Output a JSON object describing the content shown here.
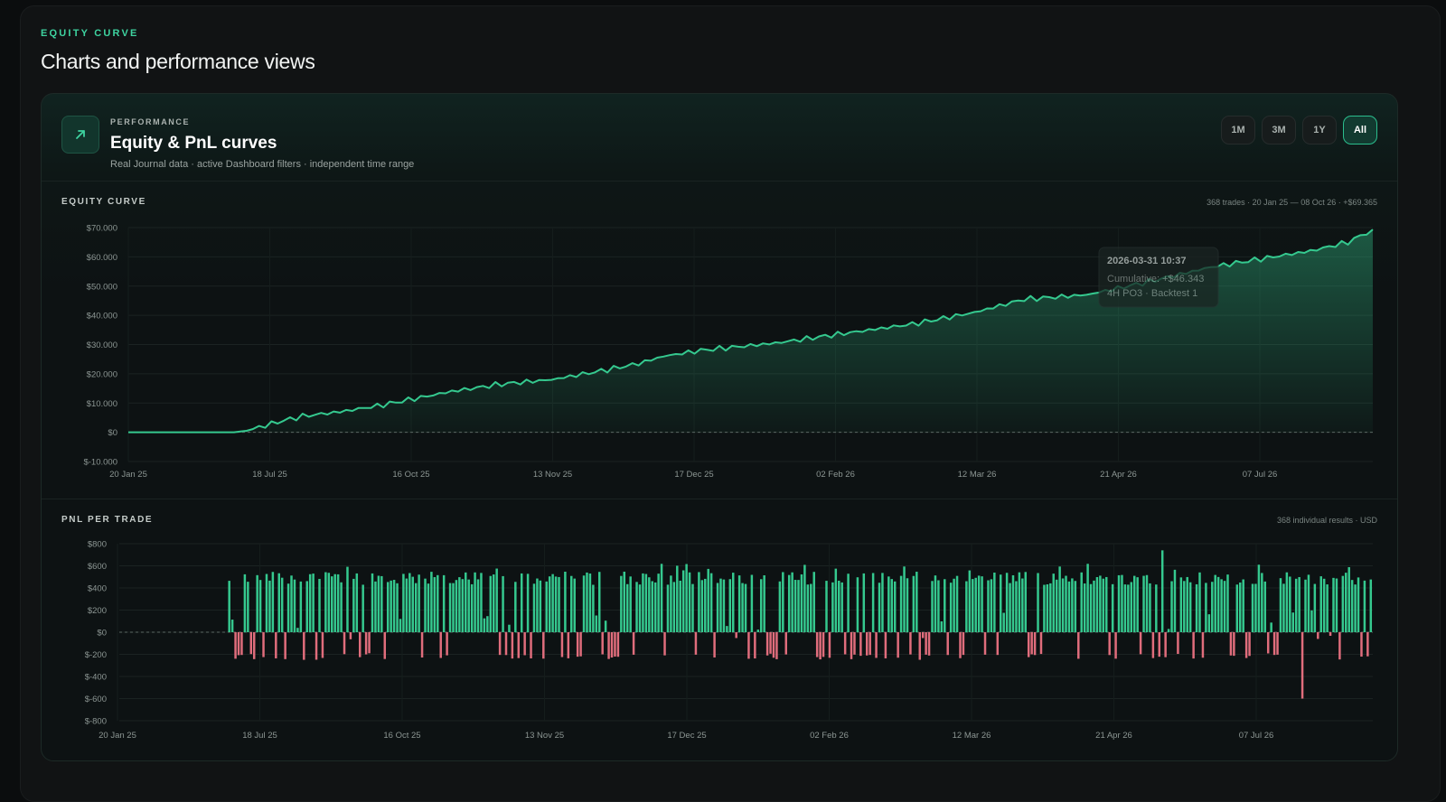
{
  "section": {
    "eyebrow": "EQUITY CURVE",
    "title": "Charts and performance views"
  },
  "card": {
    "icon": "trend-up-icon",
    "label": "PERFORMANCE",
    "title": "Equity & PnL curves",
    "subtitle": "Real Journal data · active Dashboard filters · independent time range",
    "ranges": [
      {
        "label": "1M",
        "active": false
      },
      {
        "label": "3M",
        "active": false
      },
      {
        "label": "1Y",
        "active": false
      },
      {
        "label": "All",
        "active": true
      }
    ]
  },
  "colors": {
    "accent": "#3ed3a0",
    "positive": "#35c98f",
    "negative": "#e06d7c"
  },
  "chart_data": [
    {
      "type": "area",
      "title": "EQUITY CURVE",
      "meta": "368 trades · 20 Jan 25 — 08 Oct 26 · +$69.365",
      "x_tick_labels": [
        "20 Jan 25",
        "18 Jul 25",
        "16 Oct 25",
        "13 Nov 25",
        "17 Dec 25",
        "02 Feb 26",
        "12 Mar 26",
        "21 Apr 26",
        "07 Jul 26"
      ],
      "y_tick_labels": [
        "$70.000",
        "$60.000",
        "$50.000",
        "$40.000",
        "$30.000",
        "$20.000",
        "$10.000",
        "$0",
        "$-10.000"
      ],
      "ylim": [
        -10000,
        70000
      ],
      "x_range": [
        0,
        100
      ],
      "grid": true,
      "series": [
        {
          "x": [
            0,
            8.5,
            9.5,
            12,
            14,
            17,
            20,
            23,
            26,
            30,
            34,
            38,
            41,
            43,
            46,
            52,
            57,
            63,
            68,
            72,
            77,
            82,
            87,
            92,
            95,
            98,
            100
          ],
          "values": [
            0,
            0,
            500,
            3500,
            5500,
            7000,
            9000,
            11500,
            14000,
            16500,
            18000,
            21000,
            23500,
            26000,
            28000,
            30500,
            33500,
            37000,
            41000,
            45500,
            47000,
            51500,
            56500,
            60000,
            62000,
            65000,
            69365
          ]
        }
      ],
      "tooltip": {
        "date": "2026-03-31 10:37",
        "line1": "Cumulative: +$46.343",
        "line2": "4H PO3 · Backtest 1"
      }
    },
    {
      "type": "bar",
      "title": "PNL PER TRADE",
      "meta": "368 individual results · USD",
      "x_tick_labels": [
        "20 Jan 25",
        "18 Jul 25",
        "16 Oct 25",
        "13 Nov 25",
        "17 Dec 25",
        "02 Feb 26",
        "12 Mar 26",
        "21 Apr 26",
        "07 Jul 26"
      ],
      "y_tick_labels": [
        "$800",
        "$600",
        "$400",
        "$200",
        "$0",
        "$-200",
        "$-400",
        "$-600",
        "$-800"
      ],
      "ylim": [
        -800,
        800
      ],
      "trade_count": 368,
      "first_trade_position": 0.085,
      "notable_values": {
        "max": 740,
        "min": -600
      },
      "typical_win": 500,
      "typical_loss": -220
    }
  ]
}
